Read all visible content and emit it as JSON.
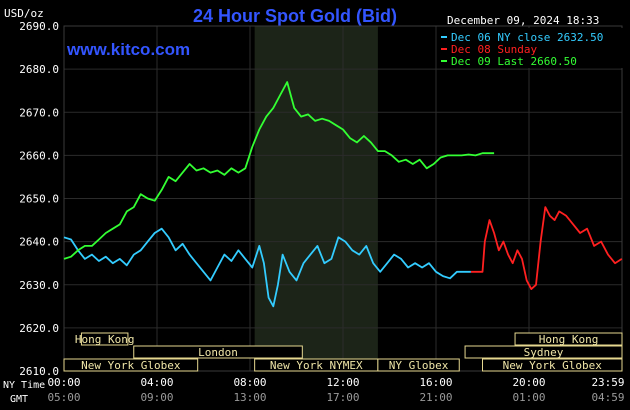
{
  "header": {
    "unit": "USD/oz",
    "title": "24 Hour Spot Gold (Bid)",
    "timestamp": "December 09, 2024 18:33",
    "site": "www.kitco.com"
  },
  "legend": [
    {
      "label": "Dec 06 NY close 2632.50",
      "color": "#33ccff"
    },
    {
      "label": "Dec 08 Sunday",
      "color": "#ff2020"
    },
    {
      "label": "Dec 09 Last 2660.50",
      "color": "#33ff33"
    }
  ],
  "colors": {
    "background": "#000000",
    "plot": "#000000",
    "nymex_shade": "#1c2418",
    "grid": "#2b2b2b",
    "axis_text": "#ffffff",
    "title": "#3355ff",
    "market_box": "#000000",
    "market_border": "#e6d890",
    "market_text": "#f0e6a8"
  },
  "markets": {
    "row1": [
      {
        "label": "Hong Kong",
        "start": 0.75,
        "end": 2.75
      },
      {
        "label": "Hong Kong",
        "start": 19.4,
        "end": 24.0
      }
    ],
    "row2": [
      {
        "label": "London",
        "start": 3.0,
        "end": 10.25
      },
      {
        "label": "Sydney",
        "start": 17.25,
        "end": 24.0
      }
    ],
    "row3": [
      {
        "label": "New York Globex",
        "start": 0.0,
        "end": 5.75
      },
      {
        "label": "New York NYMEX",
        "start": 8.2,
        "end": 13.5
      },
      {
        "label": "NY Globex",
        "start": 13.5,
        "end": 17.0
      },
      {
        "label": "New York Globex",
        "start": 18.0,
        "end": 24.0
      }
    ]
  },
  "chart_data": {
    "type": "line",
    "title": "24 Hour Spot Gold (Bid)",
    "ylabel": "USD/oz",
    "ylim": [
      2610.0,
      2690.0
    ],
    "yticks": [
      "2610.0",
      "2620.0",
      "2630.0",
      "2640.0",
      "2650.0",
      "2660.0",
      "2670.0",
      "2680.0",
      "2690.0"
    ],
    "xlim": [
      0,
      24
    ],
    "xaxis_label_ny": "NY Time",
    "xaxis_label_gmt": "GMT",
    "xticks_ny": [
      "00:00",
      "04:00",
      "08:00",
      "12:00",
      "16:00",
      "20:00",
      "23:59"
    ],
    "xticks_gmt": [
      "05:00",
      "09:00",
      "13:00",
      "17:00",
      "21:00",
      "01:00",
      "04:59"
    ],
    "nymex_shade": [
      8.2,
      13.5
    ],
    "series": [
      {
        "name": "Dec 06 NY close 2632.50",
        "color": "#33ccff",
        "x": [
          0.0,
          0.3,
          0.6,
          0.9,
          1.2,
          1.5,
          1.8,
          2.1,
          2.4,
          2.7,
          3.0,
          3.3,
          3.6,
          3.9,
          4.2,
          4.5,
          4.8,
          5.1,
          5.4,
          5.7,
          6.0,
          6.3,
          6.6,
          6.9,
          7.2,
          7.5,
          7.8,
          8.1,
          8.4,
          8.6,
          8.8,
          9.0,
          9.2,
          9.4,
          9.7,
          10.0,
          10.3,
          10.6,
          10.9,
          11.2,
          11.5,
          11.8,
          12.1,
          12.4,
          12.7,
          13.0,
          13.3,
          13.6,
          13.9,
          14.2,
          14.5,
          14.8,
          15.1,
          15.4,
          15.7,
          16.0,
          16.3,
          16.6,
          16.9,
          17.2,
          17.5
        ],
        "y": [
          2641,
          2640.5,
          2638,
          2636,
          2637,
          2635.5,
          2636.5,
          2635,
          2636,
          2634.5,
          2637,
          2638,
          2640,
          2642,
          2643,
          2641,
          2638,
          2639.5,
          2637,
          2635,
          2633,
          2631,
          2634,
          2637,
          2635.5,
          2638,
          2636,
          2634,
          2639,
          2635,
          2627,
          2625,
          2630,
          2637,
          2633,
          2631,
          2635,
          2637,
          2639,
          2635,
          2636,
          2641,
          2640,
          2638,
          2637,
          2639,
          2635,
          2633,
          2635,
          2637,
          2636,
          2634,
          2635,
          2634,
          2635,
          2633,
          2632,
          2631.5,
          2633,
          2633,
          2633
        ]
      },
      {
        "name": "Dec 08 Sunday",
        "color": "#ff2020",
        "x": [
          17.5,
          18.0,
          18.1,
          18.3,
          18.5,
          18.7,
          18.9,
          19.1,
          19.3,
          19.5,
          19.7,
          19.9,
          20.1,
          20.3,
          20.5,
          20.7,
          20.9,
          21.1,
          21.3,
          21.6,
          21.9,
          22.2,
          22.5,
          22.8,
          23.1,
          23.4,
          23.7,
          23.99
        ],
        "y": [
          2633,
          2633,
          2640,
          2645,
          2642,
          2638,
          2640,
          2637,
          2635,
          2638,
          2636,
          2631,
          2629,
          2630,
          2640,
          2648,
          2646,
          2645,
          2647,
          2646,
          2644,
          2642,
          2643,
          2639,
          2640,
          2637,
          2635,
          2636
        ]
      },
      {
        "name": "Dec 09 Last 2660.50",
        "color": "#33ff33",
        "x": [
          0.0,
          0.3,
          0.6,
          0.9,
          1.2,
          1.5,
          1.8,
          2.1,
          2.4,
          2.7,
          3.0,
          3.3,
          3.6,
          3.9,
          4.2,
          4.5,
          4.8,
          5.1,
          5.4,
          5.7,
          6.0,
          6.3,
          6.6,
          6.9,
          7.2,
          7.5,
          7.8,
          8.1,
          8.4,
          8.7,
          9.0,
          9.3,
          9.6,
          9.9,
          10.2,
          10.5,
          10.8,
          11.1,
          11.4,
          11.7,
          12.0,
          12.3,
          12.6,
          12.9,
          13.2,
          13.5,
          13.8,
          14.1,
          14.4,
          14.7,
          15.0,
          15.3,
          15.6,
          15.9,
          16.2,
          16.5,
          16.8,
          17.1,
          17.4,
          17.7,
          18.0,
          18.3,
          18.5
        ],
        "y": [
          2636,
          2636.5,
          2638,
          2639,
          2639,
          2640.5,
          2642,
          2643,
          2644,
          2647,
          2648,
          2651,
          2650,
          2649.5,
          2652,
          2655,
          2654,
          2656,
          2658,
          2656.5,
          2657,
          2656,
          2656.5,
          2655.5,
          2657,
          2656,
          2657,
          2662,
          2666,
          2669,
          2671,
          2674,
          2677,
          2671,
          2669,
          2669.5,
          2668,
          2668.5,
          2668,
          2667,
          2666,
          2664,
          2663,
          2664.5,
          2663,
          2661,
          2661,
          2660,
          2658.5,
          2659,
          2658,
          2659,
          2657,
          2658,
          2659.5,
          2660,
          2660,
          2660,
          2660.2,
          2660,
          2660.5,
          2660.5,
          2660.5
        ]
      }
    ]
  }
}
